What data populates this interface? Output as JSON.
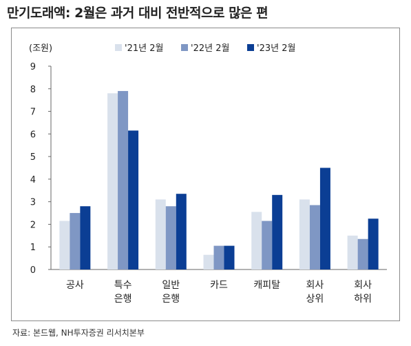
{
  "title": "만기도래액: 2월은 과거 대비 전반적으로 많은 편",
  "source": "자료: 본드웹, NH투자증권 리서치본부",
  "chart_data": {
    "type": "bar",
    "ylabel": "(조원)",
    "ylim": [
      0,
      9
    ],
    "yticks": [
      0,
      1,
      2,
      3,
      4,
      5,
      6,
      7,
      8,
      9
    ],
    "categories": [
      [
        "공사"
      ],
      [
        "특수",
        "은행"
      ],
      [
        "일반",
        "은행"
      ],
      [
        "카드"
      ],
      [
        "캐피탈"
      ],
      [
        "회사",
        "상위"
      ],
      [
        "회사",
        "하위"
      ]
    ],
    "series": [
      {
        "name": "'21년 2월",
        "color": "#d9e1ec",
        "values": [
          2.15,
          7.8,
          3.1,
          0.65,
          2.55,
          3.1,
          1.5
        ]
      },
      {
        "name": "'22년 2월",
        "color": "#7f97c4",
        "values": [
          2.5,
          7.9,
          2.8,
          1.05,
          2.15,
          2.85,
          1.35
        ]
      },
      {
        "name": "'23년 2월",
        "color": "#0b3e94",
        "values": [
          2.8,
          6.15,
          3.35,
          1.05,
          3.3,
          4.5,
          2.25
        ]
      }
    ],
    "legend_position": "top",
    "grid": false
  }
}
